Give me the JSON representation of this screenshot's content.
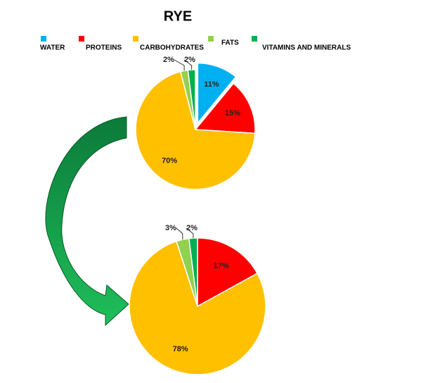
{
  "chart_data": [
    {
      "type": "pie",
      "title": "RYE",
      "categories": [
        "WATER",
        "PROTEINS",
        "CARBOHYDRATES",
        "FATS",
        "VITAMINS AND MINERALS"
      ],
      "colors": [
        "#00b0f0",
        "#ff0000",
        "#ffc000",
        "#92d050",
        "#00b050"
      ],
      "values": [
        11,
        15,
        70,
        2,
        2
      ],
      "value_labels": [
        "11%",
        "15%",
        "70%",
        "2%",
        "2%"
      ],
      "exploded": [
        0
      ]
    },
    {
      "type": "pie",
      "values": [
        0,
        17,
        78,
        3,
        2
      ],
      "value_labels": [
        "",
        "17%",
        "78%",
        "3%",
        "2%"
      ]
    }
  ]
}
